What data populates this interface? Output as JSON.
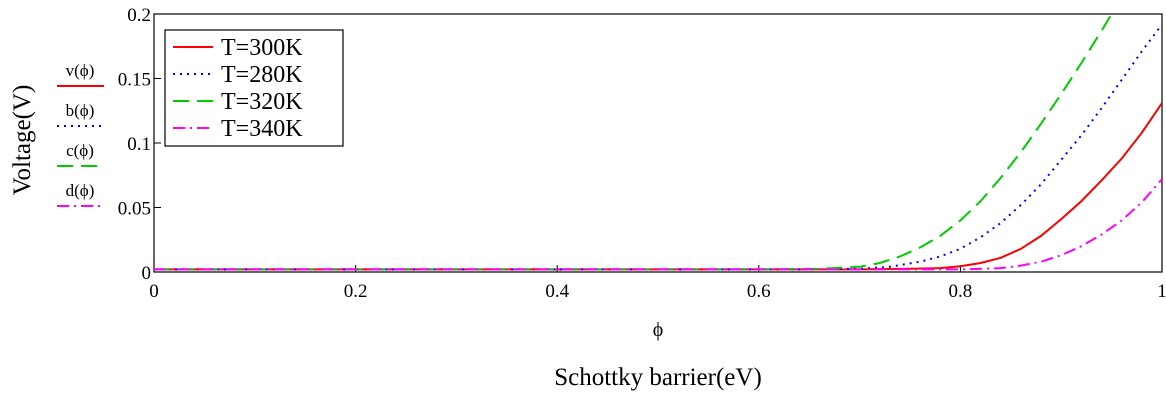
{
  "chart_data": {
    "type": "line",
    "title": "",
    "xlabel": "Schottky barrier(eV)",
    "xvar": "ϕ",
    "ylabel": "Voltage(V)",
    "xlim": [
      0,
      1
    ],
    "ylim": [
      0,
      0.2
    ],
    "xticks": [
      "0",
      "0.2",
      "0.4",
      "0.6",
      "0.8",
      "1"
    ],
    "yticks": [
      "0",
      "0.05",
      "0.1",
      "0.15",
      "0.2"
    ],
    "grid": false,
    "legend_position": "top-left",
    "series": [
      {
        "name": "T=300K",
        "func_label": "v(ϕ)",
        "color": "#ff0000",
        "dash": "solid",
        "x": [
          0,
          0.7,
          0.75,
          0.78,
          0.8,
          0.82,
          0.84,
          0.86,
          0.88,
          0.9,
          0.92,
          0.94,
          0.96,
          0.98,
          1.0
        ],
        "y": [
          0.002,
          0.002,
          0.0025,
          0.003,
          0.0045,
          0.007,
          0.011,
          0.018,
          0.028,
          0.041,
          0.055,
          0.071,
          0.088,
          0.108,
          0.131
        ]
      },
      {
        "name": "T=280K",
        "func_label": "b(ϕ)",
        "color": "#0000ff",
        "dash": "dotted",
        "x": [
          0,
          0.65,
          0.7,
          0.73,
          0.76,
          0.78,
          0.8,
          0.82,
          0.84,
          0.86,
          0.88,
          0.9,
          0.92,
          0.94,
          0.96,
          0.98,
          1.0
        ],
        "y": [
          0.002,
          0.002,
          0.0025,
          0.004,
          0.008,
          0.012,
          0.018,
          0.027,
          0.038,
          0.052,
          0.068,
          0.087,
          0.106,
          0.127,
          0.149,
          0.171,
          0.192
        ]
      },
      {
        "name": "T=320K",
        "func_label": "c(ϕ)",
        "color": "#00cc00",
        "dash": "long-dash",
        "x": [
          0,
          0.6,
          0.66,
          0.7,
          0.72,
          0.74,
          0.76,
          0.78,
          0.8,
          0.82,
          0.84,
          0.86,
          0.88,
          0.9,
          0.92,
          0.94,
          0.95
        ],
        "y": [
          0.002,
          0.002,
          0.0025,
          0.004,
          0.007,
          0.012,
          0.019,
          0.028,
          0.04,
          0.055,
          0.073,
          0.093,
          0.115,
          0.138,
          0.162,
          0.187,
          0.2
        ]
      },
      {
        "name": "T=340K",
        "func_label": "d(ϕ)",
        "color": "#ff00ff",
        "dash": "dash-dot",
        "x": [
          0,
          0.8,
          0.84,
          0.86,
          0.88,
          0.9,
          0.92,
          0.94,
          0.96,
          0.98,
          1.0
        ],
        "y": [
          0.002,
          0.002,
          0.003,
          0.005,
          0.008,
          0.013,
          0.02,
          0.029,
          0.04,
          0.054,
          0.072
        ]
      }
    ]
  }
}
